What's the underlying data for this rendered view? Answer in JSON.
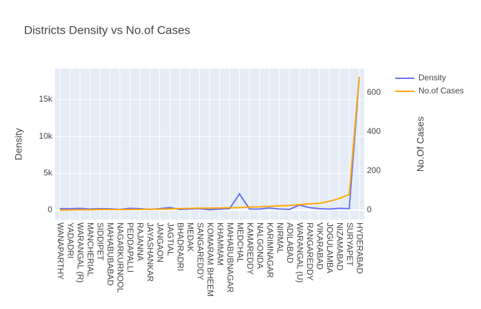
{
  "chart_data": {
    "type": "line",
    "title": "Districts Density vs No.of Cases",
    "categories": [
      "WANAPARTHY",
      "YADADRI",
      "WARANGAL (R)",
      "MANCHERIAL",
      "SIDDIPET",
      "MAHABUBABAD",
      "NAGARKURNOOL",
      "PEDDAPALLI",
      "RAJANNA",
      "JAYASHANKAR",
      "JANGAON",
      "JAGTIAL",
      "BHADRADRI",
      "MEDAK",
      "SANGAREDDY",
      "KOMARAM BHEEM",
      "KHAMMAM",
      "MAHABUBNAGAR",
      "MEDCHAL",
      "KAMAREDDY",
      "NALGONDA",
      "KARIMNAGAR",
      "NIRMAL",
      "ADILABAD",
      "WARANGAL (U)",
      "RANGAREDDY",
      "VIKARABAD",
      "JOGULAMBA",
      "NIZAMABAD",
      "SURYAPET",
      "HYDERABAD"
    ],
    "series": [
      {
        "name": "Density",
        "color": "#636efa",
        "values": [
          200,
          200,
          250,
          150,
          200,
          180,
          100,
          250,
          200,
          100,
          200,
          350,
          100,
          150,
          200,
          50,
          150,
          200,
          2200,
          150,
          150,
          300,
          150,
          100,
          700,
          350,
          200,
          150,
          250,
          200,
          18000
        ]
      },
      {
        "name": "No.of Cases",
        "color": "#ffa500",
        "axis": "y2",
        "values": [
          0,
          1,
          2,
          2,
          3,
          3,
          3,
          3,
          4,
          5,
          5,
          6,
          8,
          9,
          10,
          10,
          11,
          12,
          13,
          16,
          17,
          20,
          22,
          24,
          28,
          32,
          35,
          45,
          60,
          80,
          682
        ]
      }
    ],
    "ylabel": "Density",
    "y2label": "No.Of Cases",
    "ylim": [
      -1300,
      19200
    ],
    "yticks": [
      0,
      {
        "value": 5000,
        "label": "5k"
      },
      {
        "value": 10000,
        "label": "10k"
      },
      {
        "value": 15000,
        "label": "15k"
      }
    ],
    "y2lim": [
      -49,
      723
    ],
    "y2ticks": [
      0,
      200,
      400,
      600
    ],
    "grid": true
  }
}
